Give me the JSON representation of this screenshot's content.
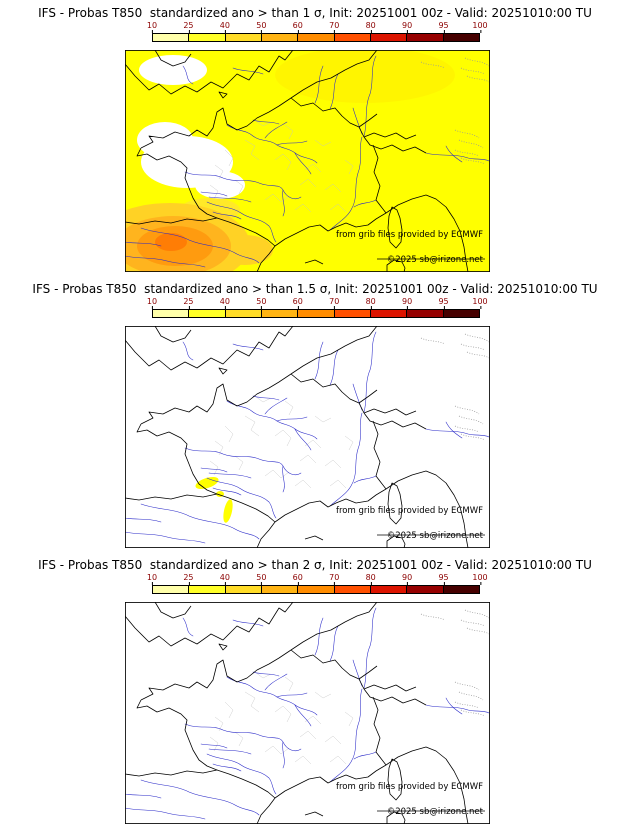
{
  "page": {
    "background": "#ffffff"
  },
  "panels": [
    {
      "id": "1sigma",
      "title": "IFS - Probas T850  standardized ano > than 1 σ, Init: 20251001 00z - Valid: 20251010:00 TU"
    },
    {
      "id": "1.5sigma",
      "title": "IFS - Probas T850  standardized ano > than 1.5 σ, Init: 20251001 00z - Valid: 20251010:00 TU"
    },
    {
      "id": "2sigma",
      "title": "IFS - Probas T850  standardized ano > than 2 σ, Init: 20251001 00z - Valid: 20251010:00 TU"
    }
  ],
  "colorbar": {
    "labels": [
      "10",
      "25",
      "40",
      "50",
      "60",
      "70",
      "80",
      "90",
      "95",
      "100"
    ],
    "segment_colors": [
      "#ffffaa",
      "#ffff28",
      "#ffdc28",
      "#ffb414",
      "#ff8c00",
      "#ff5000",
      "#dc1400",
      "#960000",
      "#460000"
    ],
    "label_color": "#8b0000"
  },
  "attribution": {
    "line1": "from grib files provided by ECMWF",
    "line2": "©2025 sb@irizone.net"
  },
  "map_colors": {
    "river": "#2929c8",
    "coast": "#000000",
    "department": "#c3c3c3",
    "prob_low": "#ffff00",
    "prob_mid": "#ffb414",
    "prob_high": "#ff7d05"
  },
  "chart_data": [
    {
      "type": "map",
      "title": "IFS - Probas T850 standardized ano > than 1 σ",
      "init": "20251001 00z",
      "valid": "20251010:00 TU",
      "units": "probability %",
      "scale": [
        10,
        25,
        40,
        50,
        60,
        70,
        80,
        90,
        95,
        100
      ],
      "summary": "10–25% (yellow) over most of the domain; 25–60% (orange shades) over northern Spain and the Pyrenees; near 0% (white) over Brittany, western France and part of southern England."
    },
    {
      "type": "map",
      "title": "IFS - Probas T850 standardized ano > than 1.5 σ",
      "init": "20251001 00z",
      "valid": "20251010:00 TU",
      "units": "probability %",
      "scale": [
        10,
        25,
        40,
        50,
        60,
        70,
        80,
        90,
        95,
        100
      ],
      "summary": "Below 10% almost everywhere; a few small 10–25% (yellow) patches over south-central France."
    },
    {
      "type": "map",
      "title": "IFS - Probas T850 standardized ano > than 2 σ",
      "init": "20251001 00z",
      "valid": "20251010:00 TU",
      "units": "probability %",
      "scale": [
        10,
        25,
        40,
        50,
        60,
        70,
        80,
        90,
        95,
        100
      ],
      "summary": "Probabilities below 10% everywhere; no shaded areas."
    }
  ]
}
